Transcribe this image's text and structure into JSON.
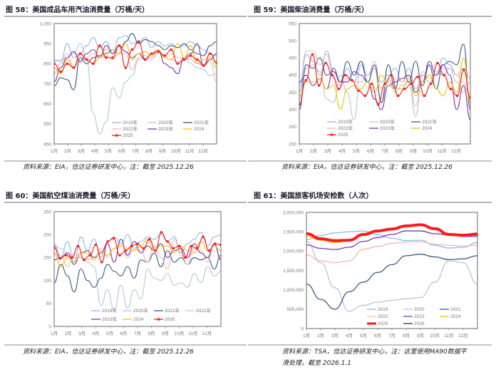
{
  "colors": {
    "2019": "#8db8f2",
    "2020": "#b9c6db",
    "2021": "#3b5b85",
    "2022": "#f6b8b8",
    "2023": "#7a3aa8",
    "2024": "#f7c100",
    "2025": "#ff1a1a",
    "2026": "#1f3864"
  },
  "chart_data": [
    {
      "type": "line",
      "title": "图 58：美国成品车用汽油消费量（万桶/天）",
      "source": "资料来源：EIA，信达证券研发中心，注：截至 2025.12.26",
      "ylim": [
        450,
        1050
      ],
      "yticks": [
        450,
        550,
        650,
        750,
        850,
        950,
        1050
      ],
      "ytick_labels": [
        "450",
        "550",
        "650",
        "750",
        "850",
        "950",
        "1,050"
      ],
      "xtick_labels": [
        "1月",
        "2月",
        "3月",
        "4月",
        "5月",
        "6月",
        "7月",
        "8月",
        "9月",
        "10月",
        "11月",
        "12月"
      ],
      "series": [
        {
          "name": "2019年",
          "key": "2019",
          "values": [
            870,
            860,
            950,
            880,
            900,
            940,
            980,
            930,
            960,
            900,
            980,
            990,
            950,
            960,
            980,
            930,
            960,
            940,
            950,
            930,
            940,
            960,
            940,
            920,
            900,
            890
          ]
        },
        {
          "name": "2020年",
          "key": "2020",
          "values": [
            860,
            870,
            880,
            900,
            950,
            870,
            600,
            500,
            560,
            730,
            680,
            760,
            790,
            870,
            880,
            870,
            900,
            880,
            870,
            860,
            880,
            850,
            830,
            820,
            790,
            800
          ]
        },
        {
          "name": "2021年",
          "key": "2021",
          "values": [
            740,
            780,
            770,
            720,
            880,
            850,
            880,
            890,
            900,
            920,
            900,
            960,
            1000,
            950,
            970,
            960,
            940,
            920,
            940,
            930,
            950,
            920,
            900,
            890,
            940,
            960
          ]
        },
        {
          "name": "2022年",
          "key": "2022",
          "values": [
            800,
            850,
            900,
            830,
            870,
            880,
            900,
            880,
            890,
            870,
            900,
            900,
            820,
            880,
            890,
            880,
            910,
            880,
            900,
            880,
            880,
            870,
            850,
            840,
            860,
            760
          ]
        },
        {
          "name": "2023年",
          "key": "2023",
          "values": [
            760,
            830,
            880,
            910,
            860,
            900,
            920,
            880,
            940,
            900,
            940,
            910,
            880,
            900,
            870,
            900,
            920,
            850,
            830,
            800,
            880,
            900,
            950,
            840,
            870,
            900
          ]
        },
        {
          "name": "2024",
          "key": "2024",
          "values": [
            830,
            800,
            870,
            830,
            900,
            870,
            850,
            880,
            920,
            920,
            900,
            950,
            870,
            900,
            910,
            890,
            920,
            880,
            870,
            950,
            880,
            940,
            850,
            870,
            880,
            830
          ]
        },
        {
          "name": "2025",
          "key": "2025",
          "marker": true,
          "values": [
            850,
            810,
            850,
            830,
            900,
            870,
            850,
            940,
            880,
            880,
            940,
            830,
            920,
            960,
            870,
            900,
            910,
            890,
            920,
            850,
            870,
            890,
            870,
            840,
            900,
            855
          ]
        }
      ]
    },
    {
      "type": "line",
      "title": "图 59：美国柴油消费量（万桶/天）",
      "source": "资料来源：EIA，信达证券研发中心，注：截至 2025.12.26",
      "ylim": [
        200,
        550
      ],
      "yticks": [
        200,
        250,
        300,
        350,
        400,
        450,
        500,
        550
      ],
      "ytick_labels": [
        "200",
        "250",
        "300",
        "350",
        "400",
        "450",
        "500",
        "550"
      ],
      "xtick_labels": [
        "1月",
        "2月",
        "3月",
        "4月",
        "5月",
        "6月",
        "7月",
        "8月",
        "9月",
        "10月",
        "11月",
        "12月"
      ],
      "series": [
        {
          "name": "2019年",
          "key": "2019",
          "values": [
            350,
            460,
            440,
            400,
            470,
            410,
            380,
            420,
            380,
            440,
            400,
            420,
            380,
            400,
            420,
            380,
            420,
            360,
            400,
            380,
            400,
            450,
            430,
            400,
            420,
            390
          ]
        },
        {
          "name": "2020年",
          "key": "2020",
          "values": [
            330,
            420,
            430,
            410,
            330,
            320,
            400,
            350,
            270,
            430,
            380,
            420,
            320,
            390,
            350,
            370,
            380,
            280,
            400,
            380,
            410,
            400,
            420,
            380,
            350,
            380
          ]
        },
        {
          "name": "2021年",
          "key": "2021",
          "values": [
            300,
            430,
            420,
            450,
            400,
            410,
            380,
            440,
            400,
            440,
            380,
            430,
            320,
            430,
            360,
            440,
            380,
            440,
            370,
            430,
            360,
            430,
            440,
            430,
            490,
            300
          ]
        },
        {
          "name": "2022年",
          "key": "2022",
          "values": [
            370,
            470,
            470,
            430,
            460,
            390,
            370,
            390,
            380,
            380,
            400,
            440,
            360,
            380,
            390,
            380,
            400,
            310,
            410,
            390,
            400,
            420,
            420,
            400,
            380,
            330
          ]
        },
        {
          "name": "2023年",
          "key": "2023",
          "values": [
            380,
            400,
            370,
            390,
            360,
            420,
            380,
            380,
            410,
            400,
            380,
            330,
            300,
            370,
            380,
            390,
            400,
            350,
            380,
            440,
            400,
            430,
            400,
            300,
            370,
            270
          ]
        },
        {
          "name": "2024",
          "key": "2024",
          "values": [
            340,
            380,
            380,
            390,
            360,
            370,
            300,
            360,
            370,
            360,
            380,
            350,
            400,
            370,
            360,
            360,
            390,
            340,
            380,
            400,
            360,
            340,
            380,
            350,
            450,
            320
          ]
        },
        {
          "name": "2025",
          "key": "2025",
          "marker": true,
          "values": [
            315,
            385,
            460,
            370,
            435,
            400,
            360,
            400,
            385,
            355,
            340,
            375,
            315,
            375,
            400,
            340,
            360,
            375,
            395,
            340,
            375,
            435,
            400,
            360,
            340,
            415,
            335
          ]
        }
      ]
    },
    {
      "type": "line",
      "title": "图 60：美国航空煤油消费量（万桶/天）",
      "source": "资料来源：EIA，信达证券研发中心，注：截至 2025.12.26",
      "ylim": [
        0,
        250
      ],
      "yticks": [
        0,
        50,
        100,
        150,
        200,
        250
      ],
      "ytick_labels": [
        "0",
        "50",
        "100",
        "150",
        "200",
        "250"
      ],
      "xtick_labels": [
        "1月",
        "2月",
        "3月",
        "4月",
        "5月",
        "6月",
        "7月",
        "8月",
        "9月",
        "10月",
        "11月",
        "12月"
      ],
      "series": [
        {
          "name": "2019年",
          "key": "2019",
          "values": [
            180,
            150,
            185,
            140,
            195,
            165,
            190,
            150,
            185,
            195,
            180,
            200,
            170,
            185,
            195,
            190,
            200,
            185,
            195,
            160,
            180,
            190,
            205,
            175,
            195,
            200
          ]
        },
        {
          "name": "2020年",
          "key": "2020",
          "values": [
            175,
            170,
            160,
            150,
            150,
            140,
            130,
            45,
            80,
            35,
            90,
            40,
            80,
            60,
            125,
            105,
            100,
            115,
            90,
            95,
            85,
            115,
            95,
            130,
            110,
            120
          ]
        },
        {
          "name": "2021年",
          "key": "2021",
          "values": [
            95,
            135,
            110,
            75,
            125,
            100,
            85,
            105,
            135,
            120,
            110,
            130,
            105,
            145,
            140,
            160,
            130,
            165,
            140,
            150,
            135,
            150,
            145,
            150,
            125,
            155
          ]
        },
        {
          "name": "2022年",
          "key": "2022",
          "values": [
            170,
            155,
            130,
            160,
            150,
            145,
            150,
            170,
            150,
            170,
            180,
            150,
            170,
            165,
            140,
            175,
            150,
            125,
            190,
            155,
            135,
            170,
            165,
            140,
            180,
            150
          ]
        },
        {
          "name": "2023年",
          "key": "2023",
          "values": [
            145,
            150,
            160,
            135,
            160,
            165,
            150,
            160,
            180,
            140,
            190,
            155,
            185,
            160,
            175,
            165,
            180,
            150,
            165,
            170,
            150,
            180,
            160,
            150,
            180,
            145
          ]
        },
        {
          "name": "2024",
          "key": "2024",
          "values": [
            160,
            130,
            150,
            140,
            160,
            160,
            145,
            165,
            155,
            170,
            175,
            170,
            165,
            175,
            190,
            165,
            175,
            175,
            160,
            175,
            165,
            160,
            185,
            165,
            175,
            165
          ]
        },
        {
          "name": "2025",
          "key": "2025",
          "marker": true,
          "values": [
            172,
            148,
            155,
            150,
            175,
            145,
            155,
            178,
            140,
            185,
            192,
            155,
            165,
            175,
            180,
            170,
            190,
            165,
            205,
            185,
            170,
            175,
            150,
            175,
            170,
            195,
            165,
            180,
            178
          ]
        }
      ]
    },
    {
      "type": "line",
      "title": "图 61：美国旅客机场安检数（人次）",
      "source": "资料来源：TSA，信达证券研发中心，注：这里使用MA90数据平",
      "source_line2": "滑处理，截至 2026.1.1",
      "ylim": [
        0,
        3000000
      ],
      "yticks": [
        0,
        500000,
        1000000,
        1500000,
        2000000,
        2500000,
        3000000
      ],
      "ytick_labels": [
        "0",
        "500,000",
        "1,000,000",
        "1,500,000",
        "2,000,000",
        "2,500,000",
        "3,000,000"
      ],
      "xtick_labels": [
        "1月",
        "2月",
        "3月",
        "4月",
        "5月",
        "6月",
        "7月",
        "8月",
        "9月",
        "10月",
        "11月",
        "12月"
      ],
      "series": [
        {
          "name": "2019",
          "key": "2019",
          "values": [
            2300000,
            2400000,
            2470000,
            2500000,
            2520000,
            2420000,
            2330000,
            2270000,
            2280000,
            2150000,
            2080000,
            2100000,
            2220000
          ]
        },
        {
          "name": "2020",
          "key": "2020",
          "values": [
            2250000,
            1700000,
            1050000,
            450000,
            600000,
            680000,
            730000,
            770000,
            800000,
            1200000,
            1750000,
            1700000,
            1150000
          ]
        },
        {
          "name": "2021",
          "key": "2021",
          "values": [
            1150000,
            750000,
            500000,
            950000,
            1200000,
            1450000,
            1650000,
            1880000,
            1920000,
            1850000,
            1780000,
            1800000,
            1880000
          ]
        },
        {
          "name": "2022",
          "key": "2022",
          "values": [
            1900000,
            1750000,
            1700000,
            1750000,
            2050000,
            2120000,
            2200000,
            2230000,
            2240000,
            2180000,
            2150000,
            2130000,
            2150000
          ]
        },
        {
          "name": "2023",
          "key": "2023",
          "values": [
            2160000,
            2070000,
            2040000,
            2100000,
            2250000,
            2350000,
            2430000,
            2520000,
            2520000,
            2450000,
            2420000,
            2380000,
            2380000
          ]
        },
        {
          "name": "2024",
          "key": "2024",
          "values": [
            2380000,
            2280000,
            2220000,
            2260000,
            2400000,
            2500000,
            2580000,
            2660000,
            2660000,
            2560000,
            2430000,
            2400000,
            2400000
          ]
        },
        {
          "name": "2025",
          "key": "2025",
          "thick": true,
          "values": [
            2450000,
            2320000,
            2270000,
            2280000,
            2430000,
            2520000,
            2570000,
            2650000,
            2680000,
            2580000,
            2430000,
            2410000,
            2440000
          ]
        },
        {
          "name": "2026",
          "key": "2026",
          "values": []
        }
      ]
    }
  ]
}
